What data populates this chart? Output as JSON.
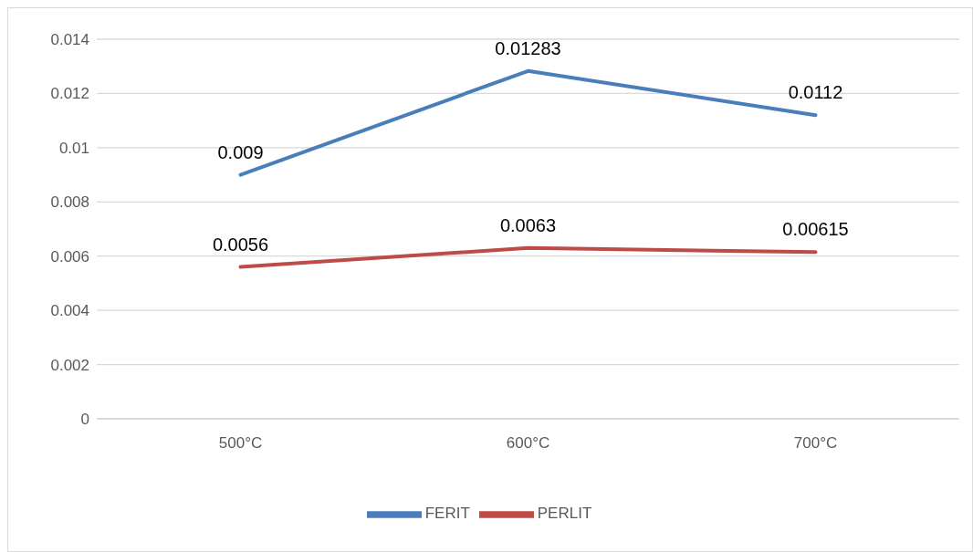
{
  "chart_data": {
    "type": "line",
    "categories": [
      "500°C",
      "600°C",
      "700°C"
    ],
    "series": [
      {
        "name": "FERIT",
        "color": "#4a7ebb",
        "values": [
          0.009,
          0.01283,
          0.0112
        ]
      },
      {
        "name": "PERLIT",
        "color": "#be4b48",
        "values": [
          0.0056,
          0.0063,
          0.00615
        ]
      }
    ],
    "ylim": [
      0,
      0.014
    ],
    "yticks": [
      0,
      0.002,
      0.004,
      0.006,
      0.008,
      0.01,
      0.012,
      0.014
    ],
    "grid": "y",
    "legend": "bottom",
    "data_labels": true,
    "marker": "none",
    "line_style": "solid"
  }
}
